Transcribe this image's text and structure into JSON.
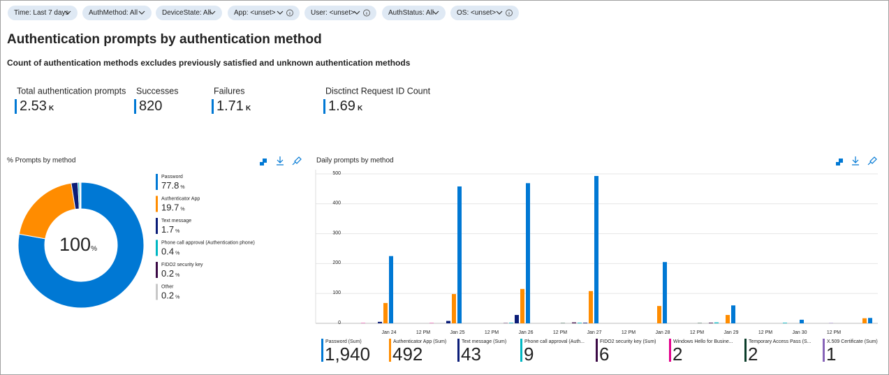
{
  "filters": [
    "Time: Last 7 days",
    "AuthMethod: All",
    "DeviceState: All",
    "App: <unset>",
    "User: <unset>",
    "AuthStatus: All",
    "OS: <unset>"
  ],
  "title": "Authentication prompts by authentication method",
  "subtitle": "Count of authentication methods excludes previously satisfied and unknown authentication methods",
  "kpis": [
    {
      "label": "Total authentication prompts",
      "value": 2.53,
      "unit": "K"
    },
    {
      "label": "Successes",
      "value": 820
    },
    {
      "label": "Failures",
      "value": 1.71,
      "unit": "K"
    },
    {
      "label": "Disctinct Request ID Count",
      "value": 1.69,
      "unit": "K"
    }
  ],
  "chart_data": [
    {
      "type": "pie",
      "title": "% Prompts by method",
      "center_label": 100,
      "unit": "%",
      "categories": [
        "Password",
        "Authenticator App",
        "Text message",
        "Phone call approval (Authentication phone)",
        "FIDO2 security key",
        "Other"
      ],
      "values": [
        77.8,
        19.7,
        1.7,
        0.4,
        0.2,
        0.2
      ],
      "colors": [
        "#0078d4",
        "#ff8c00",
        "#0b1d78",
        "#00b7c3",
        "#3b0a45",
        "#c8c8c8"
      ]
    },
    {
      "type": "bar",
      "title": "Daily prompts by method",
      "categories": [
        "Jan 24",
        "12 PM",
        "Jan 25",
        "12 PM",
        "Jan 26",
        "12 PM",
        "Jan 27",
        "12 PM",
        "Jan 28",
        "12 PM",
        "Jan 29",
        "12 PM",
        "Jan 30",
        "12 PM",
        null
      ],
      "ylim": [
        0,
        500
      ],
      "yticks": [
        0,
        100,
        200,
        300,
        400,
        500
      ],
      "grid": true,
      "series": [
        {
          "name": "Password (Sum)",
          "color": "#0078d4",
          "total": {
            "value": 1940,
            "label": "1,940"
          },
          "values": [
            225,
            null,
            458,
            null,
            469,
            null,
            493,
            null,
            205,
            null,
            60,
            null,
            12,
            null,
            18
          ]
        },
        {
          "name": "Authenticator App (Sum)",
          "color": "#ff8c00",
          "total": 492,
          "values": [
            68,
            null,
            98,
            null,
            115,
            null,
            108,
            null,
            58,
            null,
            28,
            null,
            0,
            null,
            17
          ]
        },
        {
          "name": "Text message (Sum)",
          "color": "#0b1d78",
          "total": 43,
          "values": [
            5,
            null,
            8,
            null,
            28,
            null,
            2,
            null,
            0,
            null,
            0,
            null,
            0,
            null,
            0
          ]
        },
        {
          "name": "Phone call approval (Auth...",
          "color": "#00b7c3",
          "total": 9,
          "values": [
            0,
            null,
            0,
            null,
            2,
            null,
            2,
            null,
            0,
            null,
            3,
            null,
            2,
            null,
            0
          ]
        },
        {
          "name": "FIDO2 security key (Sum)",
          "color": "#3b0a45",
          "total": 6,
          "values": [
            0,
            null,
            0,
            null,
            1,
            null,
            3,
            null,
            0,
            null,
            2,
            null,
            0,
            null,
            0
          ]
        },
        {
          "name": "Windows Hello for Busine...",
          "color": "#e3008c",
          "total": 2,
          "values": [
            1,
            null,
            1,
            null,
            0,
            null,
            0,
            null,
            0,
            null,
            0,
            null,
            0,
            null,
            0
          ]
        },
        {
          "name": "Temporary Access Pass (S...",
          "color": "#0b3d2a",
          "total": 2,
          "values": [
            0,
            null,
            0,
            null,
            0,
            null,
            1,
            null,
            0,
            null,
            1,
            null,
            0,
            null,
            0
          ]
        },
        {
          "name": "X.509 Certificate (Sum)",
          "color": "#8764b8",
          "total": 1,
          "values": [
            0,
            null,
            0,
            null,
            0,
            null,
            0,
            null,
            0,
            null,
            0,
            null,
            0,
            null,
            1
          ]
        }
      ]
    }
  ]
}
